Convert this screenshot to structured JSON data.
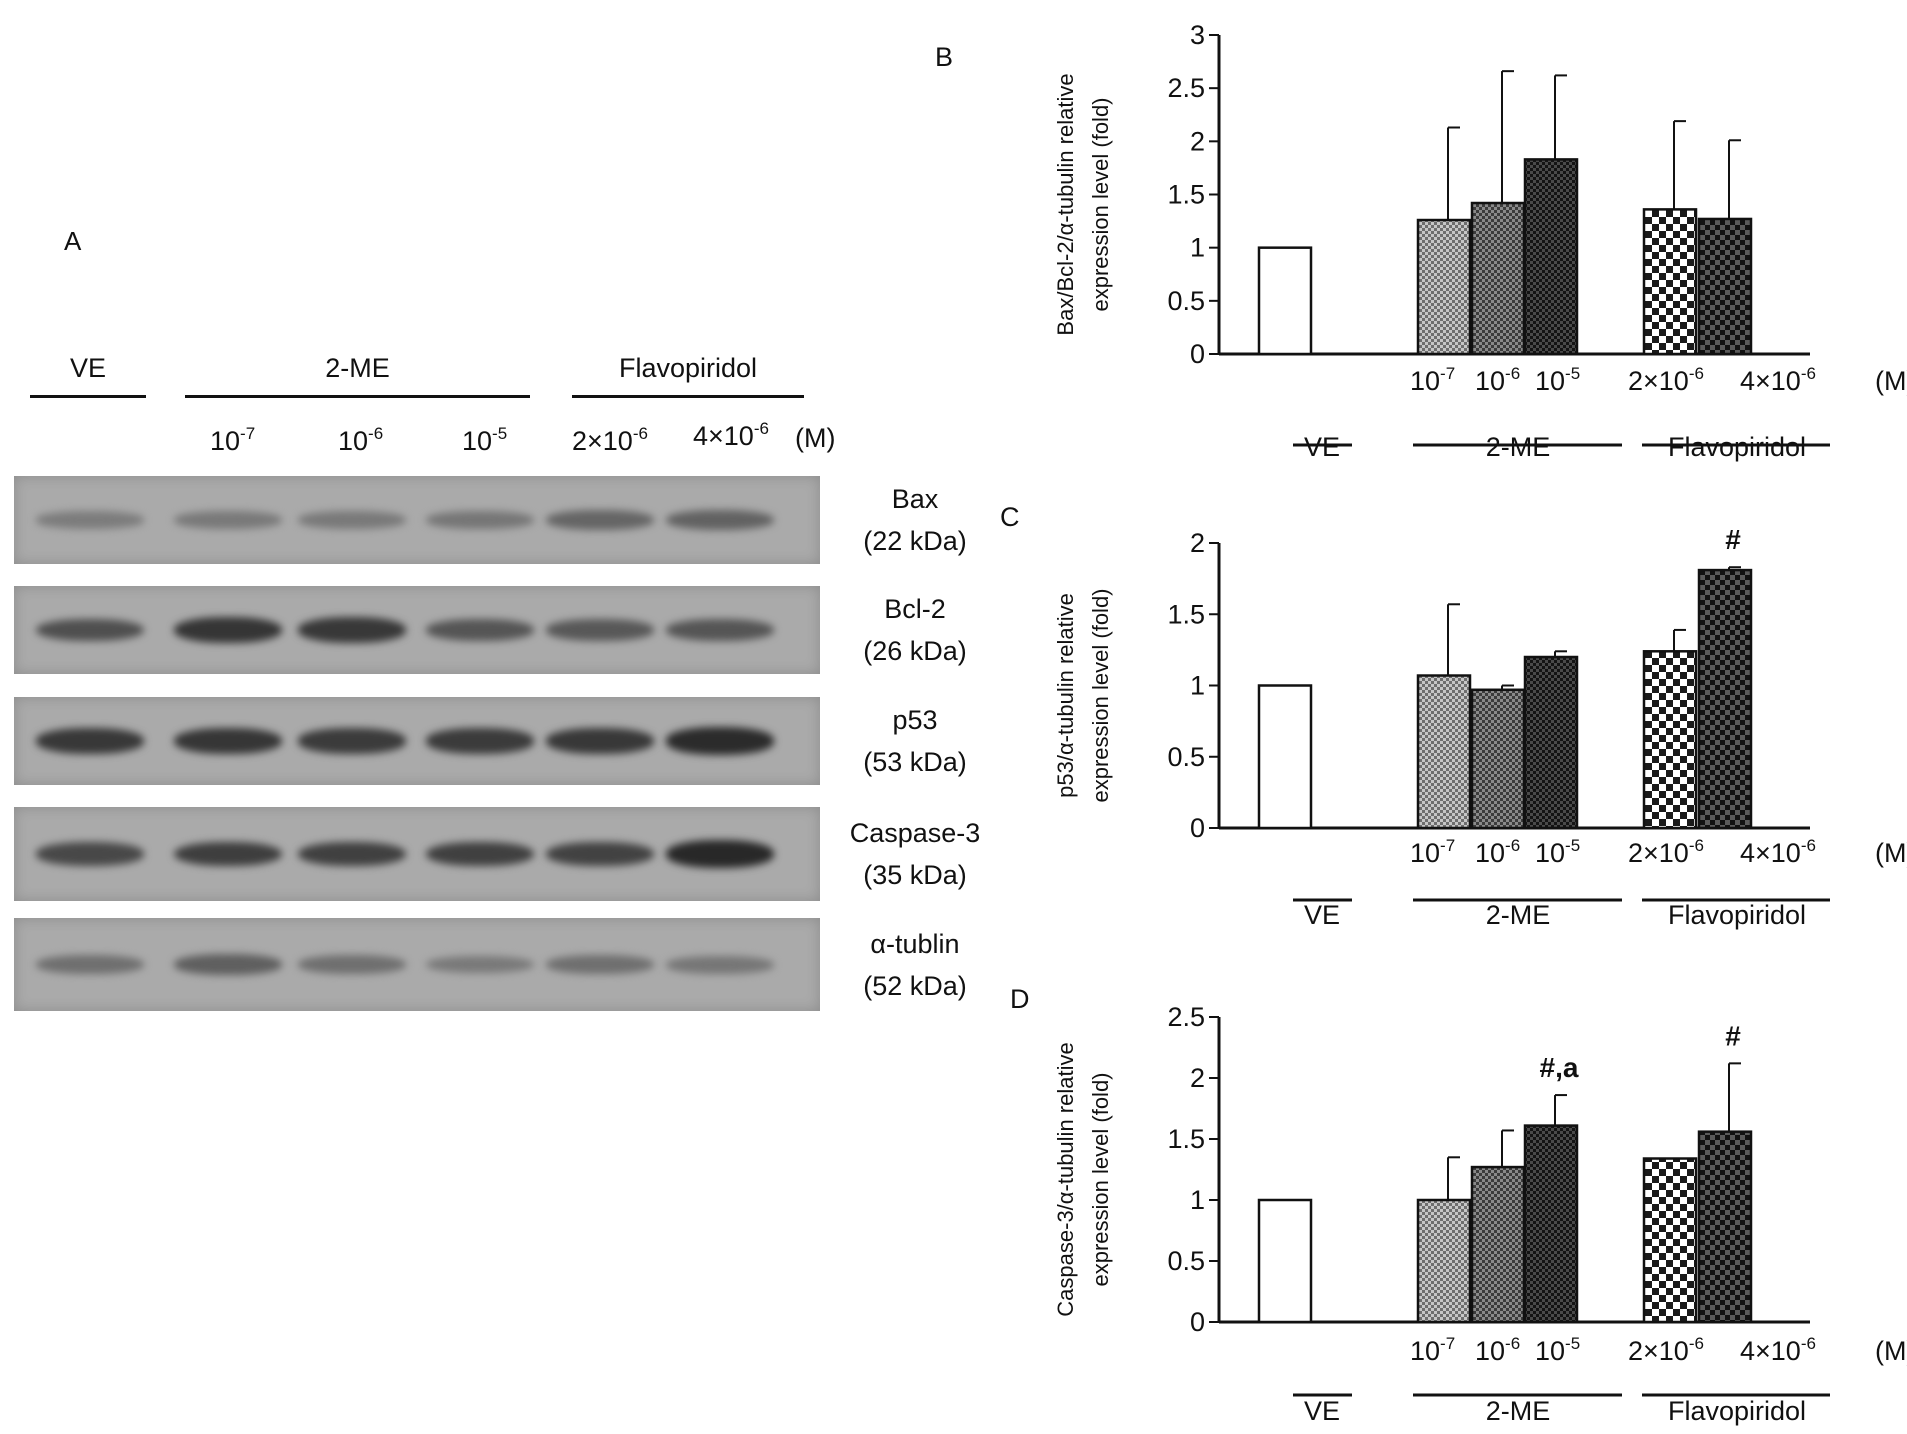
{
  "panel_a": {
    "letter": "A",
    "groups": [
      "VE",
      "2-ME",
      "Flavopiridol"
    ],
    "conc": {
      "me_base": "10",
      "me_exps": [
        "-7",
        "-6",
        "-5"
      ],
      "flavo_values": [
        "2×10",
        "4×10"
      ],
      "flavo_exp": "-6",
      "unit": "(M)"
    },
    "proteins": [
      {
        "name": "Bax",
        "mw": "(22 kDa)",
        "intensity": [
          0.2,
          0.22,
          0.22,
          0.25,
          0.38,
          0.4
        ]
      },
      {
        "name": "Bcl-2",
        "mw": "(26 kDa)",
        "intensity": [
          0.55,
          0.75,
          0.72,
          0.5,
          0.48,
          0.5
        ]
      },
      {
        "name": "p53",
        "mw": "(53 kDa)",
        "intensity": [
          0.72,
          0.74,
          0.7,
          0.7,
          0.72,
          0.82
        ]
      },
      {
        "name": "Caspase-3",
        "mw": "(35 kDa)",
        "intensity": [
          0.6,
          0.68,
          0.66,
          0.66,
          0.65,
          0.85
        ]
      },
      {
        "name": "α-tublin",
        "mw": "(52 kDa)",
        "intensity": [
          0.3,
          0.42,
          0.3,
          0.22,
          0.3,
          0.25
        ]
      }
    ]
  },
  "xgroups": {
    "ve": "VE",
    "me": "2-ME",
    "flavo": "Flavopiridol",
    "me_base": "10",
    "me_exps": [
      "-7",
      "-6",
      "-5"
    ],
    "flavo_values": [
      "2×10",
      "4×10"
    ],
    "flavo_exp": "-6",
    "unit": "(M)"
  },
  "chart_data": [
    {
      "panel": "B",
      "type": "bar",
      "ylabel_lines": [
        "Bax/Bcl-2/α-tubulin relative",
        "expression level (fold)"
      ],
      "ylim": [
        0,
        3
      ],
      "yticks": [
        "0",
        "0.5",
        "1",
        "1.5",
        "2",
        "2.5",
        "3"
      ],
      "categories": [
        "VE",
        "2-ME 10-7",
        "2-ME 10-6",
        "2-ME 10-5",
        "Flavopiridol 2x10-6",
        "Flavopiridol 4x10-6"
      ],
      "values": [
        1.0,
        1.26,
        1.42,
        1.83,
        1.36,
        1.27
      ],
      "errors": [
        0,
        0.87,
        1.24,
        0.79,
        0.83,
        0.74
      ],
      "annotations": [
        "",
        "",
        "",
        "",
        "",
        ""
      ]
    },
    {
      "panel": "C",
      "type": "bar",
      "ylabel_lines": [
        "p53/α-tubulin relative",
        "expression level (fold)"
      ],
      "ylim": [
        0,
        2
      ],
      "yticks": [
        "0",
        "0.5",
        "1",
        "1.5",
        "2"
      ],
      "categories": [
        "VE",
        "2-ME 10-7",
        "2-ME 10-6",
        "2-ME 10-5",
        "Flavopiridol 2x10-6",
        "Flavopiridol 4x10-6"
      ],
      "values": [
        1.0,
        1.07,
        0.97,
        1.2,
        1.24,
        1.81
      ],
      "errors": [
        0,
        0.5,
        0.03,
        0.04,
        0.15,
        0.02
      ],
      "annotations": [
        "",
        "",
        "",
        "",
        "",
        "#"
      ]
    },
    {
      "panel": "D",
      "type": "bar",
      "ylabel_lines": [
        "Caspase-3/α-tubulin relative",
        "expression level (fold)"
      ],
      "ylim": [
        0,
        2.5
      ],
      "yticks": [
        "0",
        "0.5",
        "1",
        "1.5",
        "2",
        "2.5"
      ],
      "categories": [
        "VE",
        "2-ME 10-7",
        "2-ME 10-6",
        "2-ME 10-5",
        "Flavopiridol 2x10-6",
        "Flavopiridol 4x10-6"
      ],
      "values": [
        1.0,
        1.0,
        1.27,
        1.61,
        1.34,
        1.56
      ],
      "errors": [
        0,
        0.35,
        0.3,
        0.25,
        0,
        0.56
      ],
      "annotations": [
        "",
        "",
        "",
        "#,a",
        "",
        "#"
      ]
    }
  ]
}
